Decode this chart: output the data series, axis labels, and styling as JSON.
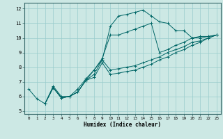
{
  "title": "",
  "xlabel": "Humidex (Indice chaleur)",
  "bg_color": "#cce8e4",
  "grid_color": "#99cccc",
  "line_color": "#006666",
  "xlim": [
    -0.5,
    23.5
  ],
  "ylim": [
    4.8,
    12.4
  ],
  "xticks": [
    0,
    1,
    2,
    3,
    4,
    5,
    6,
    7,
    8,
    9,
    10,
    11,
    12,
    13,
    14,
    15,
    16,
    17,
    18,
    19,
    20,
    21,
    22,
    23
  ],
  "yticks": [
    5,
    6,
    7,
    8,
    9,
    10,
    11,
    12
  ],
  "series": [
    {
      "x": [
        0,
        1,
        2,
        3,
        4,
        5,
        6,
        7,
        8,
        9,
        10,
        11,
        12,
        13,
        14,
        15,
        16,
        17,
        18,
        19,
        20,
        21,
        22,
        23
      ],
      "y": [
        6.5,
        5.85,
        5.5,
        6.7,
        6.0,
        6.0,
        6.5,
        7.2,
        7.8,
        8.5,
        10.8,
        11.5,
        11.6,
        11.75,
        11.9,
        11.5,
        11.1,
        11.0,
        10.5,
        10.5,
        10.0,
        10.0,
        10.1,
        10.2
      ]
    },
    {
      "x": [
        2,
        3,
        4,
        5,
        6,
        7,
        8,
        9,
        10,
        11,
        12,
        13,
        14,
        15,
        16,
        17,
        18,
        19,
        20,
        21,
        22,
        23
      ],
      "y": [
        5.5,
        6.6,
        5.9,
        6.0,
        6.3,
        7.1,
        7.8,
        8.6,
        10.2,
        10.2,
        10.4,
        10.6,
        10.8,
        11.0,
        9.0,
        9.2,
        9.5,
        9.7,
        10.0,
        10.1,
        10.1,
        10.2
      ]
    },
    {
      "x": [
        2,
        3,
        4,
        5,
        6,
        7,
        8,
        9,
        10,
        11,
        12,
        13,
        14,
        15,
        16,
        17,
        18,
        19,
        20,
        21,
        22,
        23
      ],
      "y": [
        5.5,
        6.6,
        5.9,
        6.0,
        6.3,
        7.1,
        7.5,
        8.5,
        7.8,
        7.9,
        8.0,
        8.1,
        8.3,
        8.5,
        8.7,
        9.0,
        9.2,
        9.4,
        9.7,
        9.8,
        10.0,
        10.2
      ]
    },
    {
      "x": [
        2,
        3,
        4,
        5,
        6,
        7,
        8,
        9,
        10,
        11,
        12,
        13,
        14,
        15,
        16,
        17,
        18,
        19,
        20,
        21,
        22,
        23
      ],
      "y": [
        5.5,
        6.6,
        5.9,
        6.0,
        6.3,
        7.1,
        7.3,
        8.3,
        7.5,
        7.6,
        7.7,
        7.8,
        8.0,
        8.2,
        8.5,
        8.7,
        9.0,
        9.2,
        9.5,
        9.7,
        10.0,
        10.2
      ]
    }
  ]
}
